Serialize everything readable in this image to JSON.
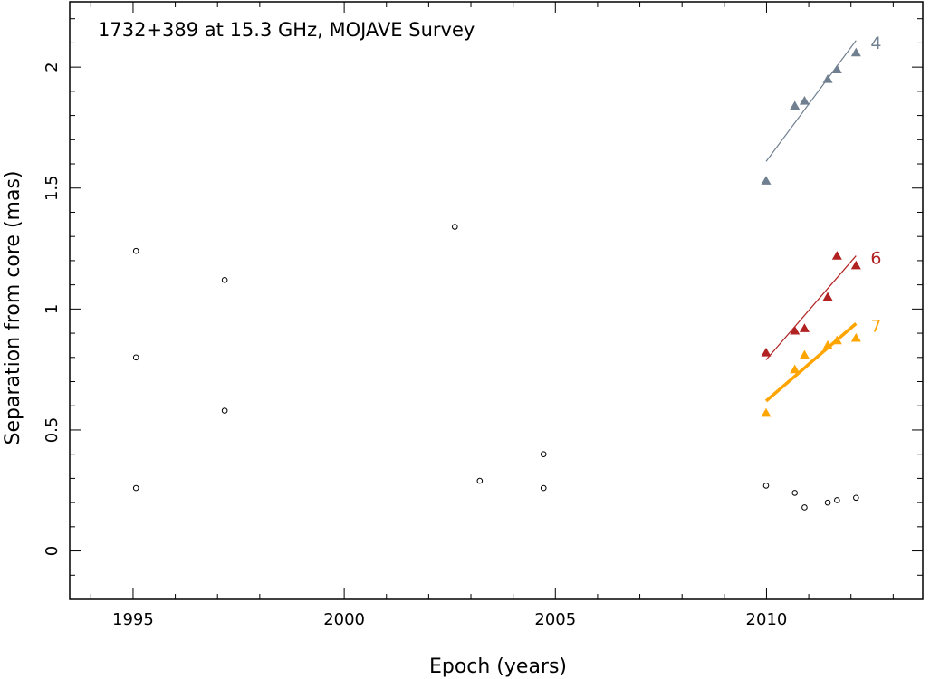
{
  "chart_data": {
    "type": "scatter",
    "title": "1732+389 at 15.3 GHz, MOJAVE Survey",
    "xlabel": "Epoch (years)",
    "ylabel": "Separation from core (mas)",
    "xlim": [
      1993.5,
      2013.7
    ],
    "ylim": [
      -0.2,
      2.27
    ],
    "x_ticks": [
      1995,
      2000,
      2005,
      2010
    ],
    "x_tick_labels": [
      "1995",
      "2000",
      "2005",
      "2010"
    ],
    "y_ticks": [
      0,
      0.5,
      1,
      1.5,
      2
    ],
    "y_tick_labels": [
      "0",
      "0.5",
      "1",
      "1.5",
      "2"
    ],
    "grid": false,
    "series": [
      {
        "name": "4",
        "marker": "triangle",
        "color": "#708090",
        "x": [
          2009.99,
          2010.67,
          2010.9,
          2011.45,
          2011.67,
          2012.12
        ],
        "y": [
          1.53,
          1.84,
          1.86,
          1.95,
          1.99,
          2.06
        ],
        "fit": {
          "x": [
            2009.99,
            2012.12
          ],
          "y": [
            1.61,
            2.11
          ],
          "width": 1.2
        }
      },
      {
        "name": "6",
        "marker": "triangle",
        "color": "#b22222",
        "x": [
          2009.99,
          2010.67,
          2010.9,
          2011.45,
          2011.67,
          2012.12
        ],
        "y": [
          0.82,
          0.91,
          0.92,
          1.05,
          1.22,
          1.18
        ],
        "fit": {
          "x": [
            2009.99,
            2012.12
          ],
          "y": [
            0.79,
            1.22
          ],
          "width": 1.2
        }
      },
      {
        "name": "7",
        "marker": "triangle",
        "color": "#ffa500",
        "x": [
          2009.99,
          2010.67,
          2010.9,
          2011.45,
          2011.67,
          2012.12
        ],
        "y": [
          0.57,
          0.75,
          0.81,
          0.85,
          0.87,
          0.88
        ],
        "fit": {
          "x": [
            2009.99,
            2012.12
          ],
          "y": [
            0.62,
            0.94
          ],
          "width": 3.5
        }
      },
      {
        "name": "",
        "marker": "circle",
        "color": "#000000",
        "x": [
          1995.07,
          1995.07,
          1995.07,
          1997.17,
          1997.17,
          2002.62,
          2003.21,
          2004.72,
          2004.72,
          2009.99,
          2010.67,
          2010.9,
          2011.45,
          2011.67,
          2012.12
        ],
        "y": [
          1.24,
          0.8,
          0.26,
          1.12,
          0.58,
          1.34,
          0.29,
          0.4,
          0.26,
          0.27,
          0.24,
          0.18,
          0.2,
          0.21,
          0.22
        ]
      }
    ]
  }
}
